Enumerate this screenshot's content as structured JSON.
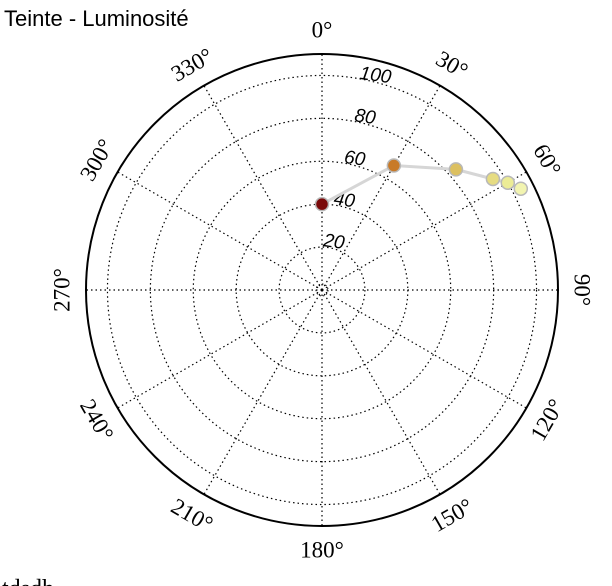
{
  "chart_data": {
    "type": "scatter",
    "subtype": "polar",
    "title": "Teinte - Luminosité",
    "angle_axis": {
      "range": [
        0,
        360
      ],
      "direction": "clockwise",
      "zero_location": "top",
      "ticks": [
        0,
        30,
        60,
        90,
        120,
        150,
        180,
        210,
        240,
        270,
        300,
        330
      ],
      "tick_labels": [
        "0°",
        "30°",
        "60°",
        "90°",
        "120°",
        "150°",
        "180°",
        "210°",
        "240°",
        "270°",
        "300°",
        "330°"
      ]
    },
    "radial_axis": {
      "range": [
        0,
        110
      ],
      "ticks": [
        20,
        40,
        60,
        80,
        100
      ],
      "tick_labels": [
        "20",
        "40",
        "60",
        "80",
        "100"
      ]
    },
    "grid": true,
    "series": [
      {
        "points": [
          {
            "theta": 0,
            "r": 40,
            "color": "#7a0a0a"
          },
          {
            "theta": 30,
            "r": 67,
            "color": "#c87a28"
          },
          {
            "theta": 48,
            "r": 84,
            "color": "#dcc060"
          },
          {
            "theta": 57,
            "r": 95,
            "color": "#e6dc82"
          },
          {
            "theta": 60,
            "r": 100,
            "color": "#ecec96"
          },
          {
            "theta": 63,
            "r": 104,
            "color": "#f2f4b0"
          }
        ],
        "line_color": "#d6d6d6",
        "marker_edge_color": "#b8b8b8"
      }
    ]
  },
  "footer_text": "tdsdh"
}
